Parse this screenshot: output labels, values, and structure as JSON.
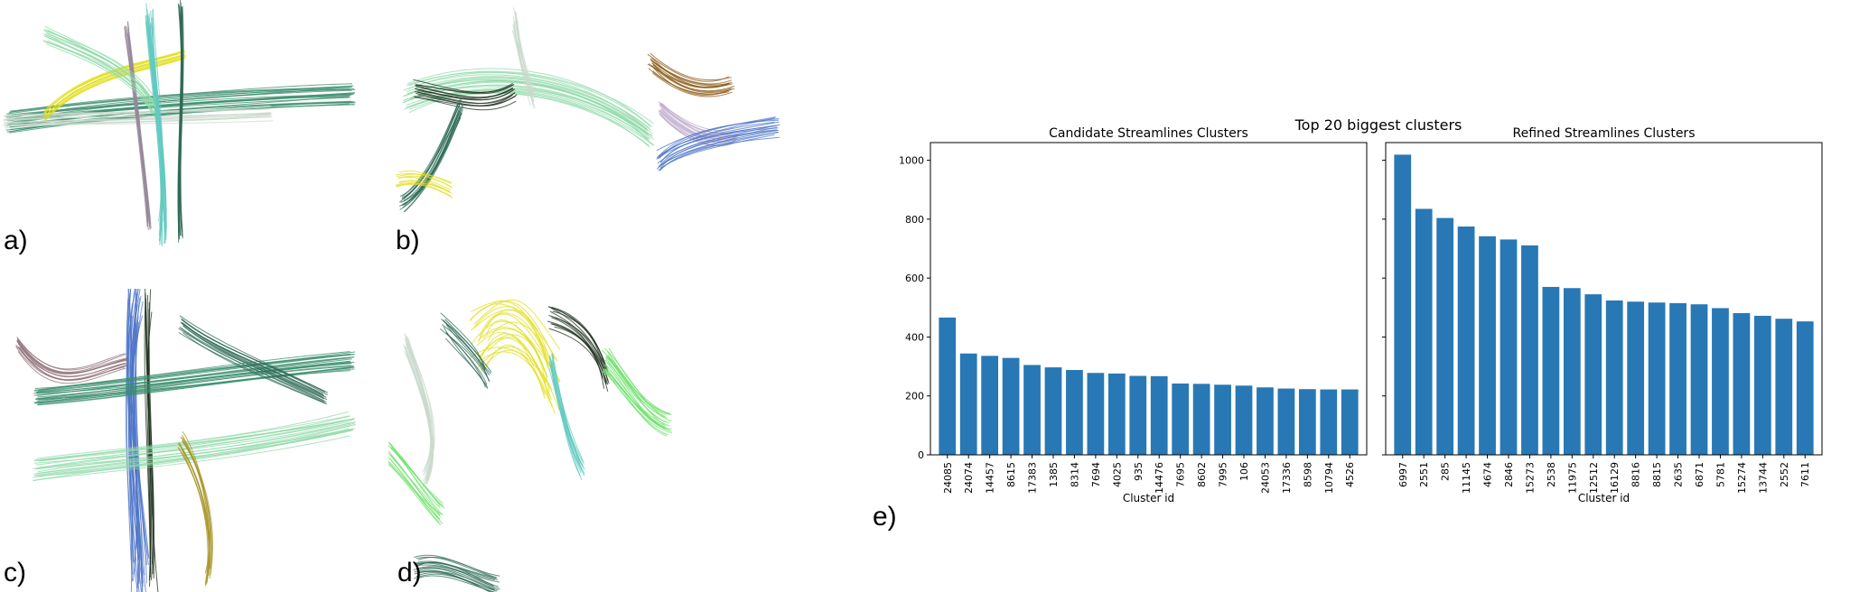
{
  "figure": {
    "panel_labels": [
      "a)",
      "b)",
      "c)",
      "d)",
      "e)"
    ],
    "suptitle": "Top 20 biggest clusters"
  },
  "colors": {
    "bar": "#2878b5",
    "bundle_palette": [
      "#3a8d6e",
      "#c9d9cc",
      "#e0dd14",
      "#62c9c0",
      "#2f6b57",
      "#8fd9a8",
      "#97879a",
      "#1b2e1b",
      "#4e74c7",
      "#a8952b",
      "#8c6f75",
      "#b8a3c7",
      "#8a5a14",
      "#6ee06a"
    ]
  },
  "chart_data": [
    {
      "type": "bar",
      "title": "Candidate Streamlines Clusters",
      "xlabel": "Cluster id",
      "ylabel": "",
      "ylim": [
        0,
        1060
      ],
      "yticks": [
        0,
        200,
        400,
        600,
        800,
        1000
      ],
      "categories": [
        "24085",
        "24074",
        "14457",
        "8615",
        "17383",
        "1385",
        "8314",
        "7694",
        "4025",
        "935",
        "14476",
        "7695",
        "8602",
        "7995",
        "106",
        "24053",
        "17336",
        "8598",
        "10794",
        "4526"
      ],
      "values": [
        466,
        344,
        336,
        329,
        305,
        297,
        288,
        278,
        276,
        268,
        267,
        242,
        241,
        238,
        235,
        229,
        225,
        223,
        222,
        222
      ]
    },
    {
      "type": "bar",
      "title": "Refined Streamlines Clusters",
      "xlabel": "Cluster id",
      "ylabel": "",
      "ylim": [
        0,
        1060
      ],
      "yticks": [
        0,
        200,
        400,
        600,
        800,
        1000
      ],
      "categories": [
        "6997",
        "2551",
        "285",
        "11145",
        "4674",
        "2846",
        "15273",
        "2538",
        "11975",
        "12512",
        "16129",
        "8816",
        "8815",
        "2635",
        "6871",
        "5781",
        "15274",
        "13744",
        "2552",
        "7611"
      ],
      "values": [
        1019,
        835,
        804,
        775,
        742,
        731,
        711,
        570,
        566,
        545,
        524,
        520,
        517,
        515,
        511,
        498,
        481,
        472,
        462,
        453
      ]
    }
  ]
}
